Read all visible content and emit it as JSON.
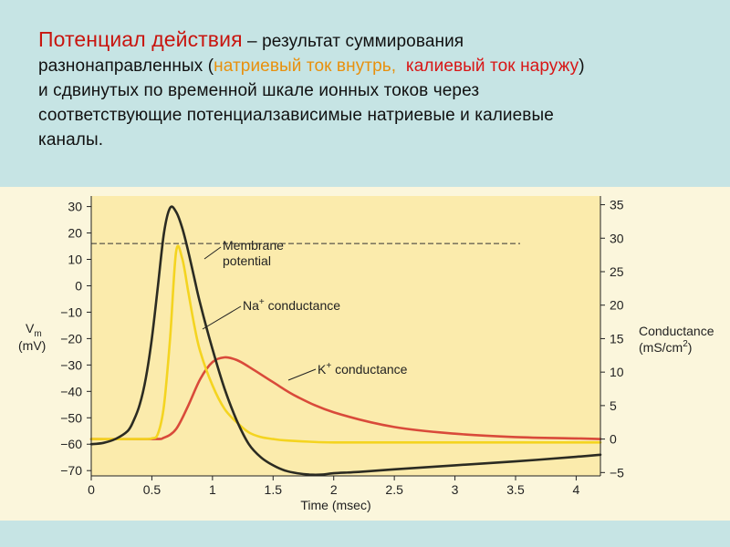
{
  "heading": {
    "title": "Потенциал действия",
    "dash": " – ",
    "line1_rest": "результат суммирования",
    "line2_start": "разнонаправленных  (",
    "sodium": "натриевый ток внутрь,",
    "gap": "  ",
    "potassium": "калиевый ток наружу",
    "close_paren": ")",
    "line3": "и сдвинутых по временной шкале ионных токов через",
    "line4": "соответствующие потенциалзависимые натриевые и калиевые",
    "line5": "каналы."
  },
  "colors": {
    "background": "#c6e4e4",
    "plot_area": "#fbebac",
    "membrane": "#2b2b22",
    "sodium": "#f4d420",
    "potassium": "#d94a3a",
    "title_red": "#c8150f",
    "sodium_text": "#e8900c",
    "potassium_text": "#d81616"
  },
  "chart_data": {
    "type": "line",
    "xlabel": "Time (msec)",
    "x_ticks": [
      "0",
      "0.5",
      "1",
      "1.5",
      "2",
      "2.5",
      "3",
      "3.5",
      "4"
    ],
    "xlim": [
      0,
      4.2
    ],
    "y_left": {
      "label_main": "V",
      "label_sub": "m",
      "label_unit": "(mV)",
      "ticks": [
        "30",
        "20",
        "10",
        "0",
        "−10",
        "−20",
        "−30",
        "−40",
        "−50",
        "−60",
        "−70"
      ],
      "ylim": [
        -72,
        34
      ]
    },
    "y_right": {
      "label_main": "Conductance",
      "label_unit_pre": "(mS/cm",
      "label_unit_sup": "2",
      "label_unit_post": ")",
      "ticks": [
        "35",
        "30",
        "25",
        "20",
        "15",
        "10",
        "5",
        "0",
        "−5"
      ],
      "ylim": [
        -5.5,
        36.3
      ]
    },
    "reference_line": {
      "axis": "left",
      "y": 16,
      "style": "dashed"
    },
    "series": [
      {
        "name": "Membrane potential",
        "label_line1": "Membrane",
        "label_line2": "potential",
        "axis": "left",
        "x": [
          0,
          0.1,
          0.2,
          0.3,
          0.35,
          0.4,
          0.45,
          0.5,
          0.55,
          0.6,
          0.65,
          0.7,
          0.75,
          0.8,
          0.85,
          0.9,
          1.0,
          1.1,
          1.2,
          1.3,
          1.4,
          1.5,
          1.6,
          1.7,
          1.8,
          1.9,
          2.0,
          2.2,
          2.5,
          3.0,
          3.5,
          4.0,
          4.2
        ],
        "y": [
          -60,
          -59.5,
          -58,
          -55,
          -51,
          -45,
          -35,
          -20,
          0,
          20,
          29.5,
          28,
          22,
          13,
          3,
          -7,
          -24,
          -39,
          -51,
          -60,
          -65,
          -68,
          -70,
          -71,
          -71.5,
          -71.5,
          -71,
          -70.5,
          -69.5,
          -68,
          -66.5,
          -64.8,
          -64
        ]
      },
      {
        "name": "Na+ conductance",
        "label_main": "Na",
        "label_sup": "+",
        "label_rest": " conductance",
        "axis": "right",
        "x": [
          0,
          0.4,
          0.5,
          0.55,
          0.6,
          0.65,
          0.7,
          0.75,
          0.8,
          0.85,
          0.9,
          1.0,
          1.1,
          1.2,
          1.3,
          1.4,
          1.5,
          1.6,
          1.8,
          2.0,
          2.5,
          3.0,
          3.5,
          4.0,
          4.2
        ],
        "y": [
          0,
          0,
          0.1,
          0.8,
          5,
          15,
          28,
          27,
          22,
          17,
          13,
          8,
          4.5,
          2.5,
          1,
          0.3,
          0,
          -0.2,
          -0.4,
          -0.5,
          -0.5,
          -0.5,
          -0.5,
          -0.5,
          -0.5
        ]
      },
      {
        "name": "K+ conductance",
        "label_main": "K",
        "label_sup": "+",
        "label_rest": " conductance",
        "axis": "right",
        "x": [
          0,
          0.5,
          0.6,
          0.7,
          0.8,
          0.9,
          1.0,
          1.1,
          1.2,
          1.3,
          1.5,
          1.7,
          2.0,
          2.5,
          3.0,
          3.5,
          4.0,
          4.2
        ],
        "y": [
          0,
          0,
          0.2,
          1.5,
          5,
          9,
          11.5,
          12.2,
          11.8,
          10.8,
          8.5,
          6.3,
          4,
          1.8,
          0.8,
          0.3,
          0.1,
          0
        ]
      }
    ]
  }
}
